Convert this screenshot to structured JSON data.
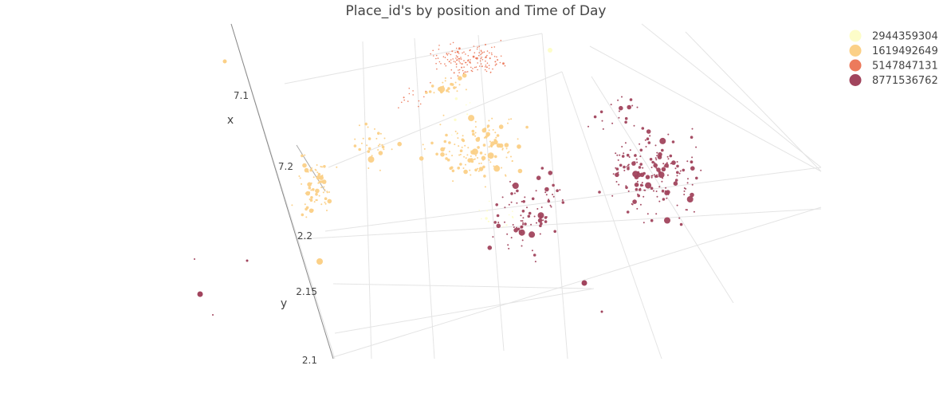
{
  "chart_data": {
    "type": "scatter3d",
    "title": "Place_id's by position and Time of Day",
    "axes": {
      "x": {
        "label": "x",
        "ticks": [
          "7.1",
          "7.2"
        ]
      },
      "y": {
        "label": "y",
        "ticks": [
          "2.2",
          "2.15",
          "2.1"
        ]
      },
      "z": {
        "label": "",
        "ticks": []
      }
    },
    "grid": true,
    "legend": {
      "position": "top-right"
    },
    "series": [
      {
        "name": "2944359304",
        "color": "#fdfdc9"
      },
      {
        "name": "1619492649",
        "color": "#fbd087"
      },
      {
        "name": "5147847131",
        "color": "#ec7a5c"
      },
      {
        "name": "8771536762",
        "color": "#a1445d"
      }
    ]
  }
}
